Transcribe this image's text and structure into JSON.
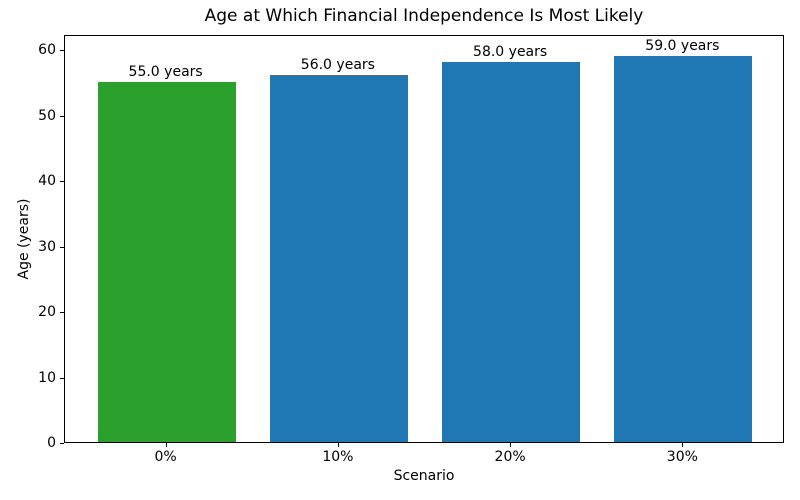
{
  "chart_data": {
    "type": "bar",
    "title": "Age at Which Financial Independence Is Most Likely",
    "xlabel": "Scenario",
    "ylabel": "Age (years)",
    "categories": [
      "0%",
      "10%",
      "20%",
      "30%"
    ],
    "values": [
      55.0,
      56.0,
      58.0,
      59.0
    ],
    "bar_labels": [
      "55.0 years",
      "56.0 years",
      "58.0 years",
      "59.0 years"
    ],
    "bar_colors": [
      "#2ca02c",
      "#1f77b4",
      "#1f77b4",
      "#1f77b4"
    ],
    "yticks": [
      0,
      10,
      20,
      30,
      40,
      50,
      60
    ],
    "ylim": [
      0,
      62.3
    ],
    "grid": false,
    "legend_position": "none",
    "background_color": "#ffffff",
    "axis_color": "#000000"
  }
}
